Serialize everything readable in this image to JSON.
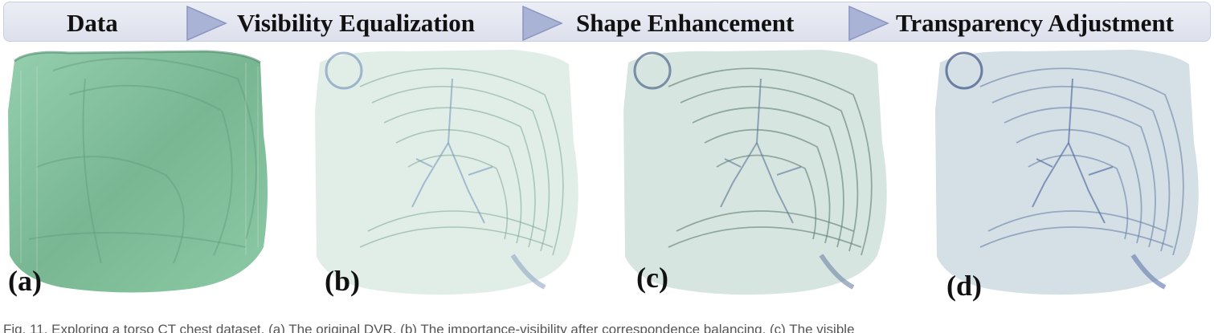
{
  "pipeline": {
    "stages": [
      {
        "label": "Data"
      },
      {
        "label": "Visibility Equalization"
      },
      {
        "label": "Shape Enhancement"
      },
      {
        "label": "Transparency Adjustment"
      }
    ],
    "arrow_color": "#a9b3d6",
    "bar_color": "#e3e6f0"
  },
  "panels": [
    {
      "label": "(a)",
      "tint": "#7fbf96"
    },
    {
      "label": "(b)",
      "tint": "#cfe3da"
    },
    {
      "label": "(c)",
      "tint": "#c7d9d2"
    },
    {
      "label": "(d)",
      "tint": "#c3d2dd"
    }
  ],
  "caption": {
    "text": "Fig. 11. Exploring a torso CT chest dataset. (a) The original DVR. (b) The importance-visibility after correspondence balancing. (c) The visible"
  }
}
